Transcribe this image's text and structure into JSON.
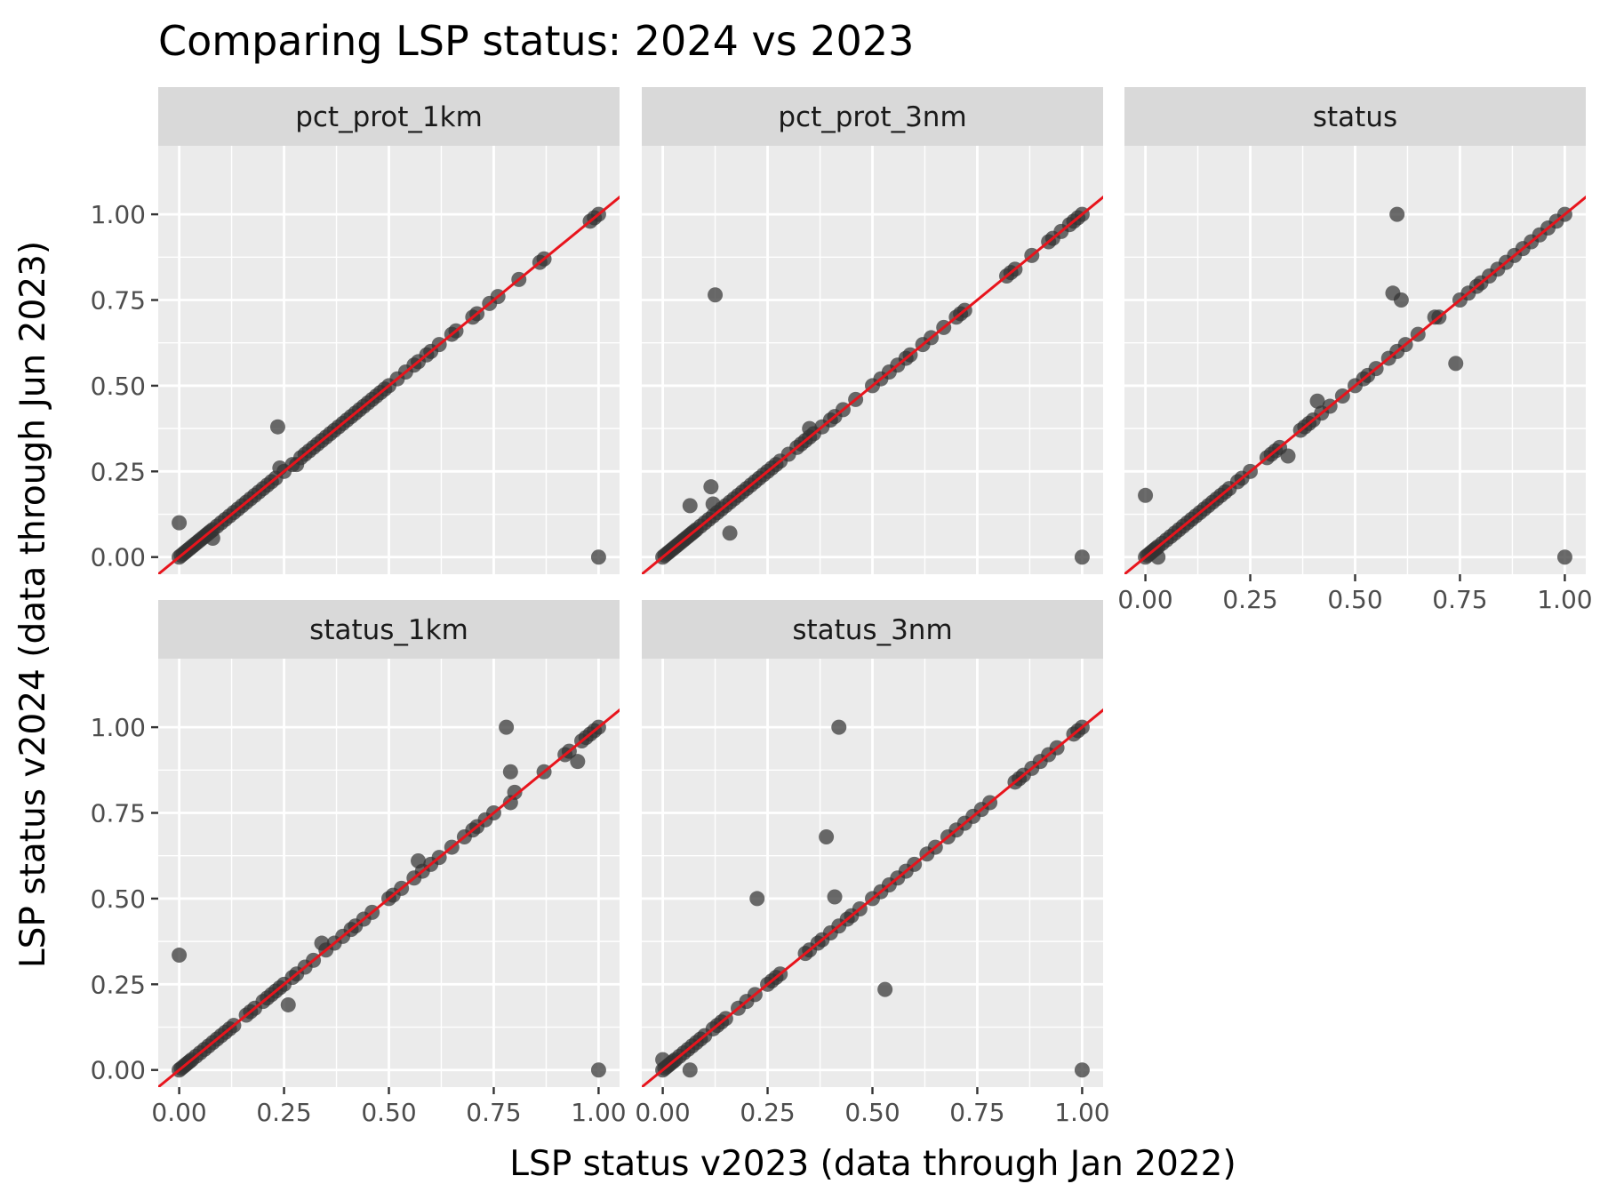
{
  "chart_data": {
    "type": "scatter",
    "title": "Comparing LSP status: 2024 vs 2023",
    "xlabel": "LSP status v2023 (data through Jan 2022)",
    "ylabel": "LSP status v2024 (data through Jun 2023)",
    "xlim": [
      -0.05,
      1.05
    ],
    "ylim": [
      -0.05,
      1.2
    ],
    "x_ticks": [
      "0.00",
      "0.25",
      "0.50",
      "0.75",
      "1.00"
    ],
    "y_ticks": [
      "0.00",
      "0.25",
      "0.50",
      "0.75",
      "1.00"
    ],
    "grid": true,
    "reference_line": {
      "slope": 1,
      "intercept": 0,
      "color": "#e8141c"
    },
    "point_color": "#333333",
    "panels": [
      {
        "name": "pct_prot_1km",
        "outliers": [
          [
            0.0,
            0.1
          ],
          [
            0.235,
            0.38
          ],
          [
            0.24,
            0.26
          ],
          [
            0.28,
            0.27
          ],
          [
            0.08,
            0.055
          ],
          [
            0.98,
            0.98
          ],
          [
            1.0,
            0.0
          ]
        ],
        "diagonal_points": [
          0.0,
          0.005,
          0.01,
          0.015,
          0.02,
          0.025,
          0.03,
          0.035,
          0.04,
          0.045,
          0.05,
          0.055,
          0.06,
          0.065,
          0.07,
          0.075,
          0.08,
          0.09,
          0.1,
          0.11,
          0.12,
          0.13,
          0.14,
          0.15,
          0.16,
          0.17,
          0.18,
          0.19,
          0.2,
          0.21,
          0.22,
          0.23,
          0.25,
          0.27,
          0.29,
          0.3,
          0.31,
          0.32,
          0.33,
          0.34,
          0.35,
          0.36,
          0.37,
          0.38,
          0.39,
          0.4,
          0.41,
          0.42,
          0.43,
          0.44,
          0.45,
          0.46,
          0.47,
          0.48,
          0.49,
          0.5,
          0.52,
          0.54,
          0.56,
          0.57,
          0.59,
          0.6,
          0.62,
          0.65,
          0.66,
          0.7,
          0.71,
          0.74,
          0.76,
          0.81,
          0.86,
          0.87,
          0.99,
          1.0
        ]
      },
      {
        "name": "pct_prot_3nm",
        "outliers": [
          [
            0.125,
            0.765
          ],
          [
            0.065,
            0.15
          ],
          [
            0.115,
            0.205
          ],
          [
            0.12,
            0.155
          ],
          [
            0.16,
            0.07
          ],
          [
            0.35,
            0.375
          ],
          [
            1.0,
            0.0
          ]
        ],
        "diagonal_points": [
          0.0,
          0.005,
          0.01,
          0.015,
          0.02,
          0.025,
          0.03,
          0.035,
          0.04,
          0.045,
          0.05,
          0.055,
          0.06,
          0.065,
          0.07,
          0.075,
          0.08,
          0.09,
          0.1,
          0.11,
          0.12,
          0.13,
          0.14,
          0.15,
          0.16,
          0.17,
          0.18,
          0.19,
          0.2,
          0.21,
          0.22,
          0.23,
          0.24,
          0.25,
          0.26,
          0.27,
          0.28,
          0.3,
          0.32,
          0.33,
          0.34,
          0.35,
          0.36,
          0.38,
          0.4,
          0.41,
          0.43,
          0.46,
          0.5,
          0.52,
          0.54,
          0.56,
          0.58,
          0.59,
          0.62,
          0.64,
          0.67,
          0.7,
          0.71,
          0.72,
          0.82,
          0.83,
          0.84,
          0.88,
          0.92,
          0.93,
          0.95,
          0.97,
          0.98,
          0.99,
          1.0
        ]
      },
      {
        "name": "status",
        "outliers": [
          [
            0.0,
            0.18
          ],
          [
            0.6,
            1.0
          ],
          [
            0.59,
            0.77
          ],
          [
            0.61,
            0.75
          ],
          [
            0.74,
            0.565
          ],
          [
            0.34,
            0.295
          ],
          [
            0.41,
            0.455
          ],
          [
            0.69,
            0.7
          ],
          [
            0.03,
            0.0
          ],
          [
            1.0,
            0.0
          ]
        ],
        "diagonal_points": [
          0.0,
          0.005,
          0.01,
          0.015,
          0.02,
          0.025,
          0.03,
          0.04,
          0.05,
          0.06,
          0.07,
          0.08,
          0.09,
          0.1,
          0.11,
          0.12,
          0.13,
          0.14,
          0.15,
          0.16,
          0.17,
          0.18,
          0.19,
          0.2,
          0.22,
          0.23,
          0.25,
          0.29,
          0.3,
          0.31,
          0.32,
          0.37,
          0.38,
          0.39,
          0.4,
          0.42,
          0.44,
          0.47,
          0.5,
          0.52,
          0.53,
          0.55,
          0.58,
          0.6,
          0.62,
          0.65,
          0.7,
          0.75,
          0.77,
          0.79,
          0.8,
          0.82,
          0.84,
          0.86,
          0.88,
          0.9,
          0.92,
          0.94,
          0.96,
          0.98,
          1.0
        ]
      },
      {
        "name": "status_1km",
        "outliers": [
          [
            0.0,
            0.335
          ],
          [
            0.78,
            1.0
          ],
          [
            0.79,
            0.87
          ],
          [
            0.8,
            0.81
          ],
          [
            0.79,
            0.78
          ],
          [
            0.95,
            0.9
          ],
          [
            0.26,
            0.19
          ],
          [
            0.57,
            0.61
          ],
          [
            0.34,
            0.37
          ],
          [
            1.0,
            0.0
          ]
        ],
        "diagonal_points": [
          0.0,
          0.005,
          0.01,
          0.015,
          0.02,
          0.025,
          0.03,
          0.04,
          0.05,
          0.06,
          0.07,
          0.08,
          0.09,
          0.1,
          0.11,
          0.12,
          0.13,
          0.16,
          0.17,
          0.18,
          0.2,
          0.21,
          0.22,
          0.23,
          0.24,
          0.25,
          0.27,
          0.28,
          0.3,
          0.32,
          0.35,
          0.37,
          0.39,
          0.41,
          0.42,
          0.44,
          0.46,
          0.5,
          0.51,
          0.53,
          0.56,
          0.58,
          0.6,
          0.62,
          0.65,
          0.68,
          0.7,
          0.71,
          0.73,
          0.75,
          0.87,
          0.92,
          0.93,
          0.96,
          0.97,
          0.98,
          0.99,
          1.0
        ]
      },
      {
        "name": "status_3nm",
        "outliers": [
          [
            0.42,
            1.0
          ],
          [
            0.39,
            0.68
          ],
          [
            0.225,
            0.5
          ],
          [
            0.41,
            0.505
          ],
          [
            0.53,
            0.235
          ],
          [
            0.0,
            0.03
          ],
          [
            0.065,
            0.0
          ],
          [
            1.0,
            0.0
          ]
        ],
        "diagonal_points": [
          0.0,
          0.005,
          0.01,
          0.015,
          0.02,
          0.025,
          0.03,
          0.04,
          0.05,
          0.06,
          0.07,
          0.08,
          0.09,
          0.1,
          0.12,
          0.13,
          0.14,
          0.15,
          0.18,
          0.2,
          0.22,
          0.25,
          0.26,
          0.27,
          0.28,
          0.34,
          0.35,
          0.37,
          0.38,
          0.4,
          0.42,
          0.44,
          0.45,
          0.47,
          0.5,
          0.52,
          0.54,
          0.56,
          0.58,
          0.6,
          0.63,
          0.65,
          0.68,
          0.7,
          0.72,
          0.74,
          0.76,
          0.78,
          0.84,
          0.85,
          0.86,
          0.88,
          0.9,
          0.92,
          0.94,
          0.98,
          0.99,
          1.0
        ]
      }
    ]
  }
}
